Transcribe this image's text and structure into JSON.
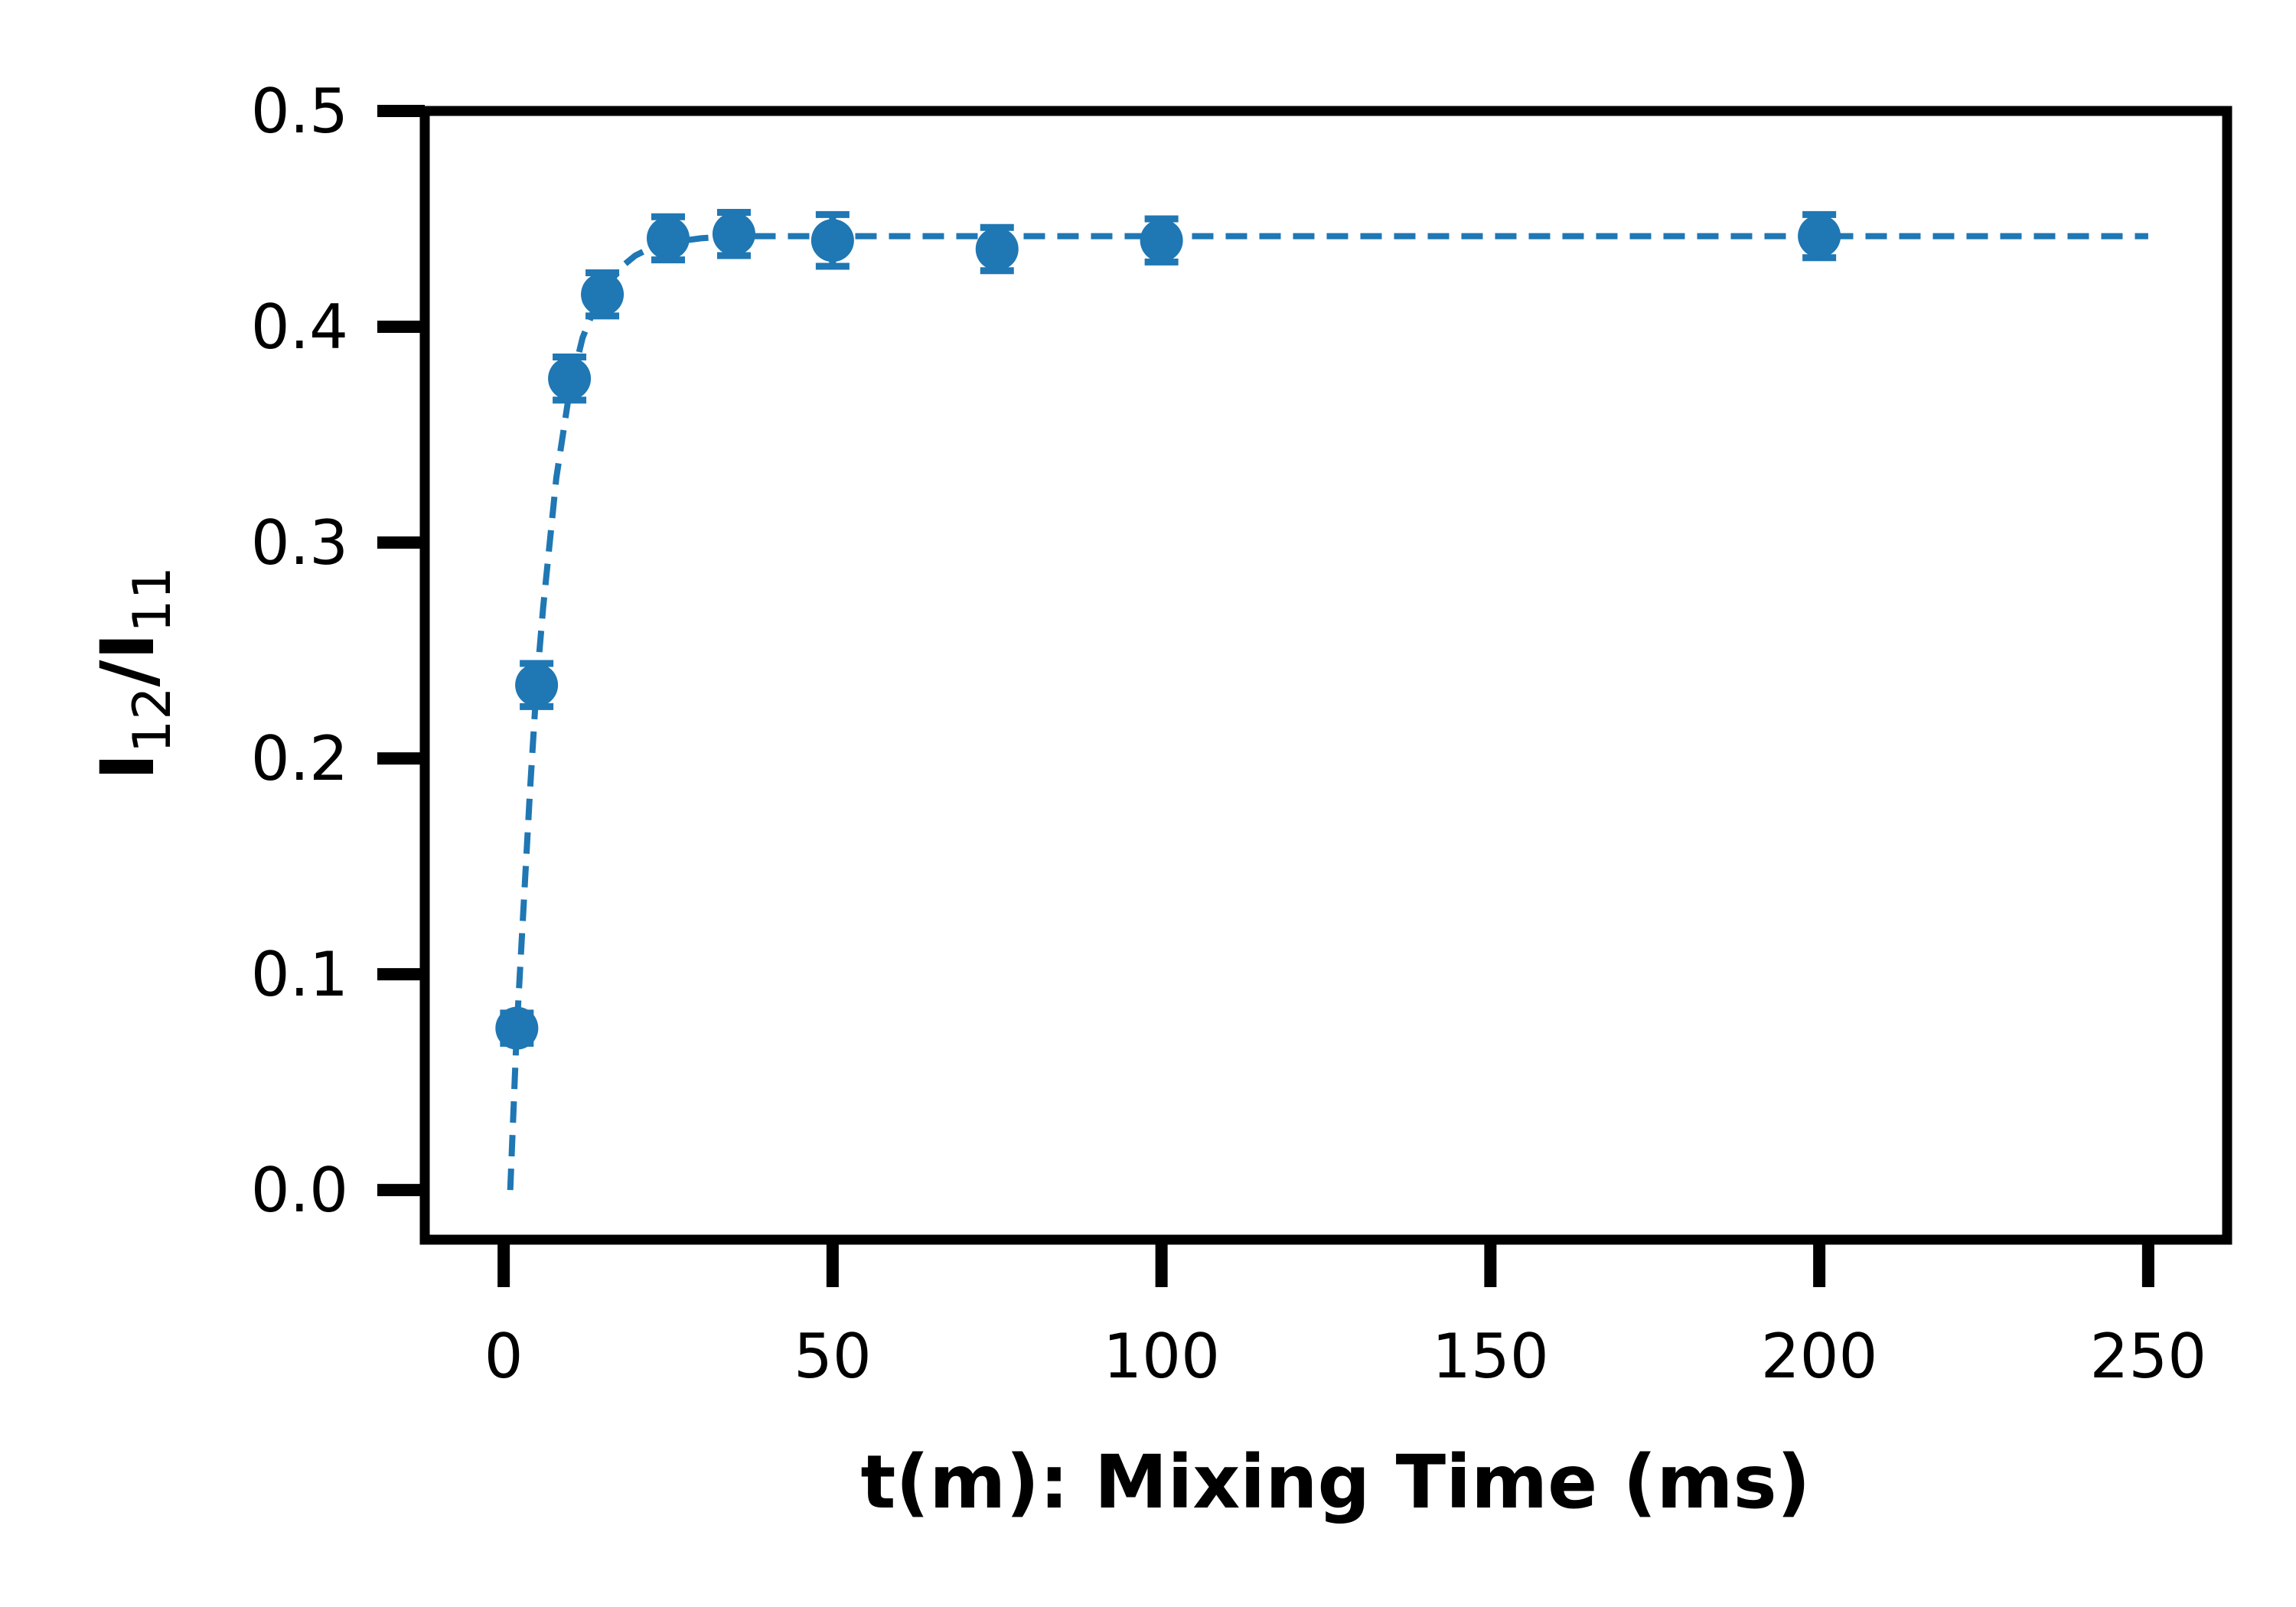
{
  "chart_data": {
    "type": "scatter",
    "title": "",
    "xlabel": "t(m): Mixing Time (ms)",
    "ylabel": {
      "base": "I",
      "num_sub": "12",
      "slash": "/",
      "den_sub": "11"
    },
    "xlim": [
      -12,
      262
    ],
    "ylim": [
      -0.023,
      0.5
    ],
    "xticks": [
      0,
      50,
      100,
      150,
      200,
      250
    ],
    "yticks": [
      0.0,
      0.1,
      0.2,
      0.3,
      0.4,
      0.5
    ],
    "xtick_labels": [
      "0",
      "50",
      "100",
      "150",
      "200",
      "250"
    ],
    "ytick_labels": [
      "0.0",
      "0.1",
      "0.2",
      "0.3",
      "0.4",
      "0.5"
    ],
    "grid": false,
    "color": "#1f77b4",
    "series": [
      {
        "style": "markers-with-errorbars",
        "x": [
          2,
          5,
          10,
          15,
          25,
          35,
          50,
          75,
          100,
          200
        ],
        "y": [
          0.075,
          0.234,
          0.376,
          0.415,
          0.441,
          0.443,
          0.44,
          0.436,
          0.44,
          0.442
        ],
        "yerr": [
          0.007,
          0.01,
          0.01,
          0.01,
          0.01,
          0.01,
          0.012,
          0.01,
          0.01,
          0.01
        ]
      },
      {
        "style": "dashed-fit",
        "x": [
          1,
          2,
          3,
          4,
          5,
          6,
          8,
          10,
          12,
          14,
          16,
          18,
          20,
          22,
          25,
          30,
          35,
          40,
          50,
          75,
          100,
          150,
          200,
          250
        ],
        "y": [
          0.0,
          0.075,
          0.13,
          0.185,
          0.234,
          0.27,
          0.33,
          0.37,
          0.395,
          0.41,
          0.42,
          0.428,
          0.433,
          0.436,
          0.439,
          0.441,
          0.442,
          0.442,
          0.442,
          0.442,
          0.442,
          0.442,
          0.442,
          0.442
        ]
      }
    ]
  }
}
